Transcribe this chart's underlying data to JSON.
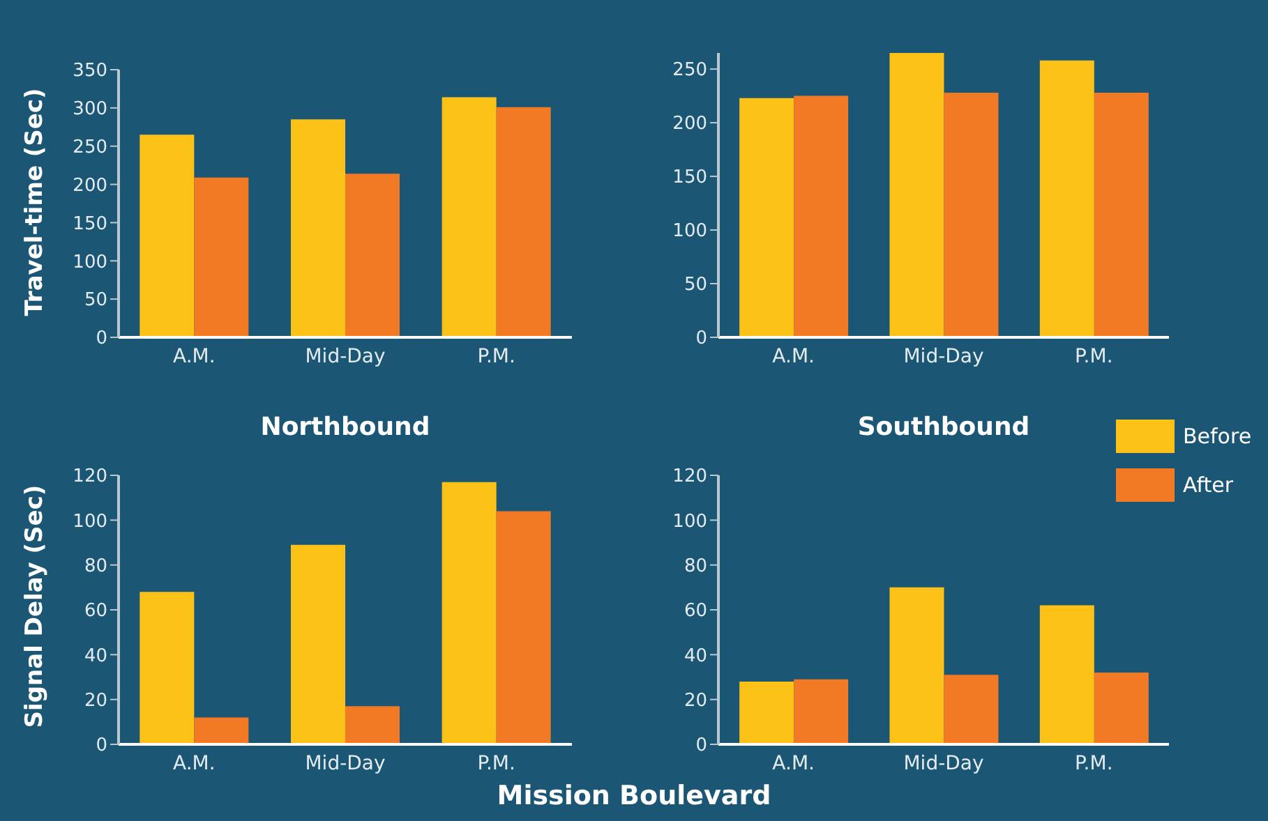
{
  "chart_data": [
    {
      "type": "bar",
      "ylabel": "Travel-time (Sec)",
      "categories": [
        "A.M.",
        "Mid-Day",
        "P.M."
      ],
      "ylim": [
        0,
        350
      ],
      "yticks": [
        0,
        50,
        100,
        150,
        200,
        250,
        300,
        350
      ],
      "grid": false,
      "series": [
        {
          "color": "#fdc218",
          "values": [
            265,
            285,
            314
          ]
        },
        {
          "color": "#f37a24",
          "values": [
            209,
            214,
            301
          ]
        }
      ]
    },
    {
      "type": "bar",
      "categories": [
        "A.M.",
        "Mid-Day",
        "P.M."
      ],
      "ylim": [
        0,
        265
      ],
      "yticks": [
        0,
        50,
        100,
        150,
        200,
        250
      ],
      "grid": false,
      "series": [
        {
          "color": "#fdc218",
          "values": [
            223,
            265,
            258
          ]
        },
        {
          "color": "#f37a24",
          "values": [
            225,
            228,
            228
          ]
        }
      ]
    },
    {
      "type": "bar",
      "title": "Northbound",
      "ylabel": "Signal Delay (Sec)",
      "xlabel": "Mission Boulevard",
      "categories": [
        "A.M.",
        "Mid-Day",
        "P.M."
      ],
      "ylim": [
        0,
        120
      ],
      "yticks": [
        0,
        20,
        40,
        60,
        80,
        100,
        120
      ],
      "grid": false,
      "series": [
        {
          "color": "#fdc218",
          "values": [
            68,
            89,
            117
          ]
        },
        {
          "color": "#f37a24",
          "values": [
            12,
            17,
            104
          ]
        }
      ]
    },
    {
      "type": "bar",
      "title": "Southbound",
      "categories": [
        "A.M.",
        "Mid-Day",
        "P.M."
      ],
      "ylim": [
        0,
        120
      ],
      "yticks": [
        0,
        20,
        40,
        60,
        80,
        100,
        120
      ],
      "grid": false,
      "legend": "top right",
      "series": [
        {
          "name": "Before",
          "color": "#fdc218",
          "values": [
            28,
            70,
            62
          ]
        },
        {
          "name": "After",
          "color": "#f37a24",
          "values": [
            29,
            31,
            32
          ]
        }
      ]
    }
  ]
}
